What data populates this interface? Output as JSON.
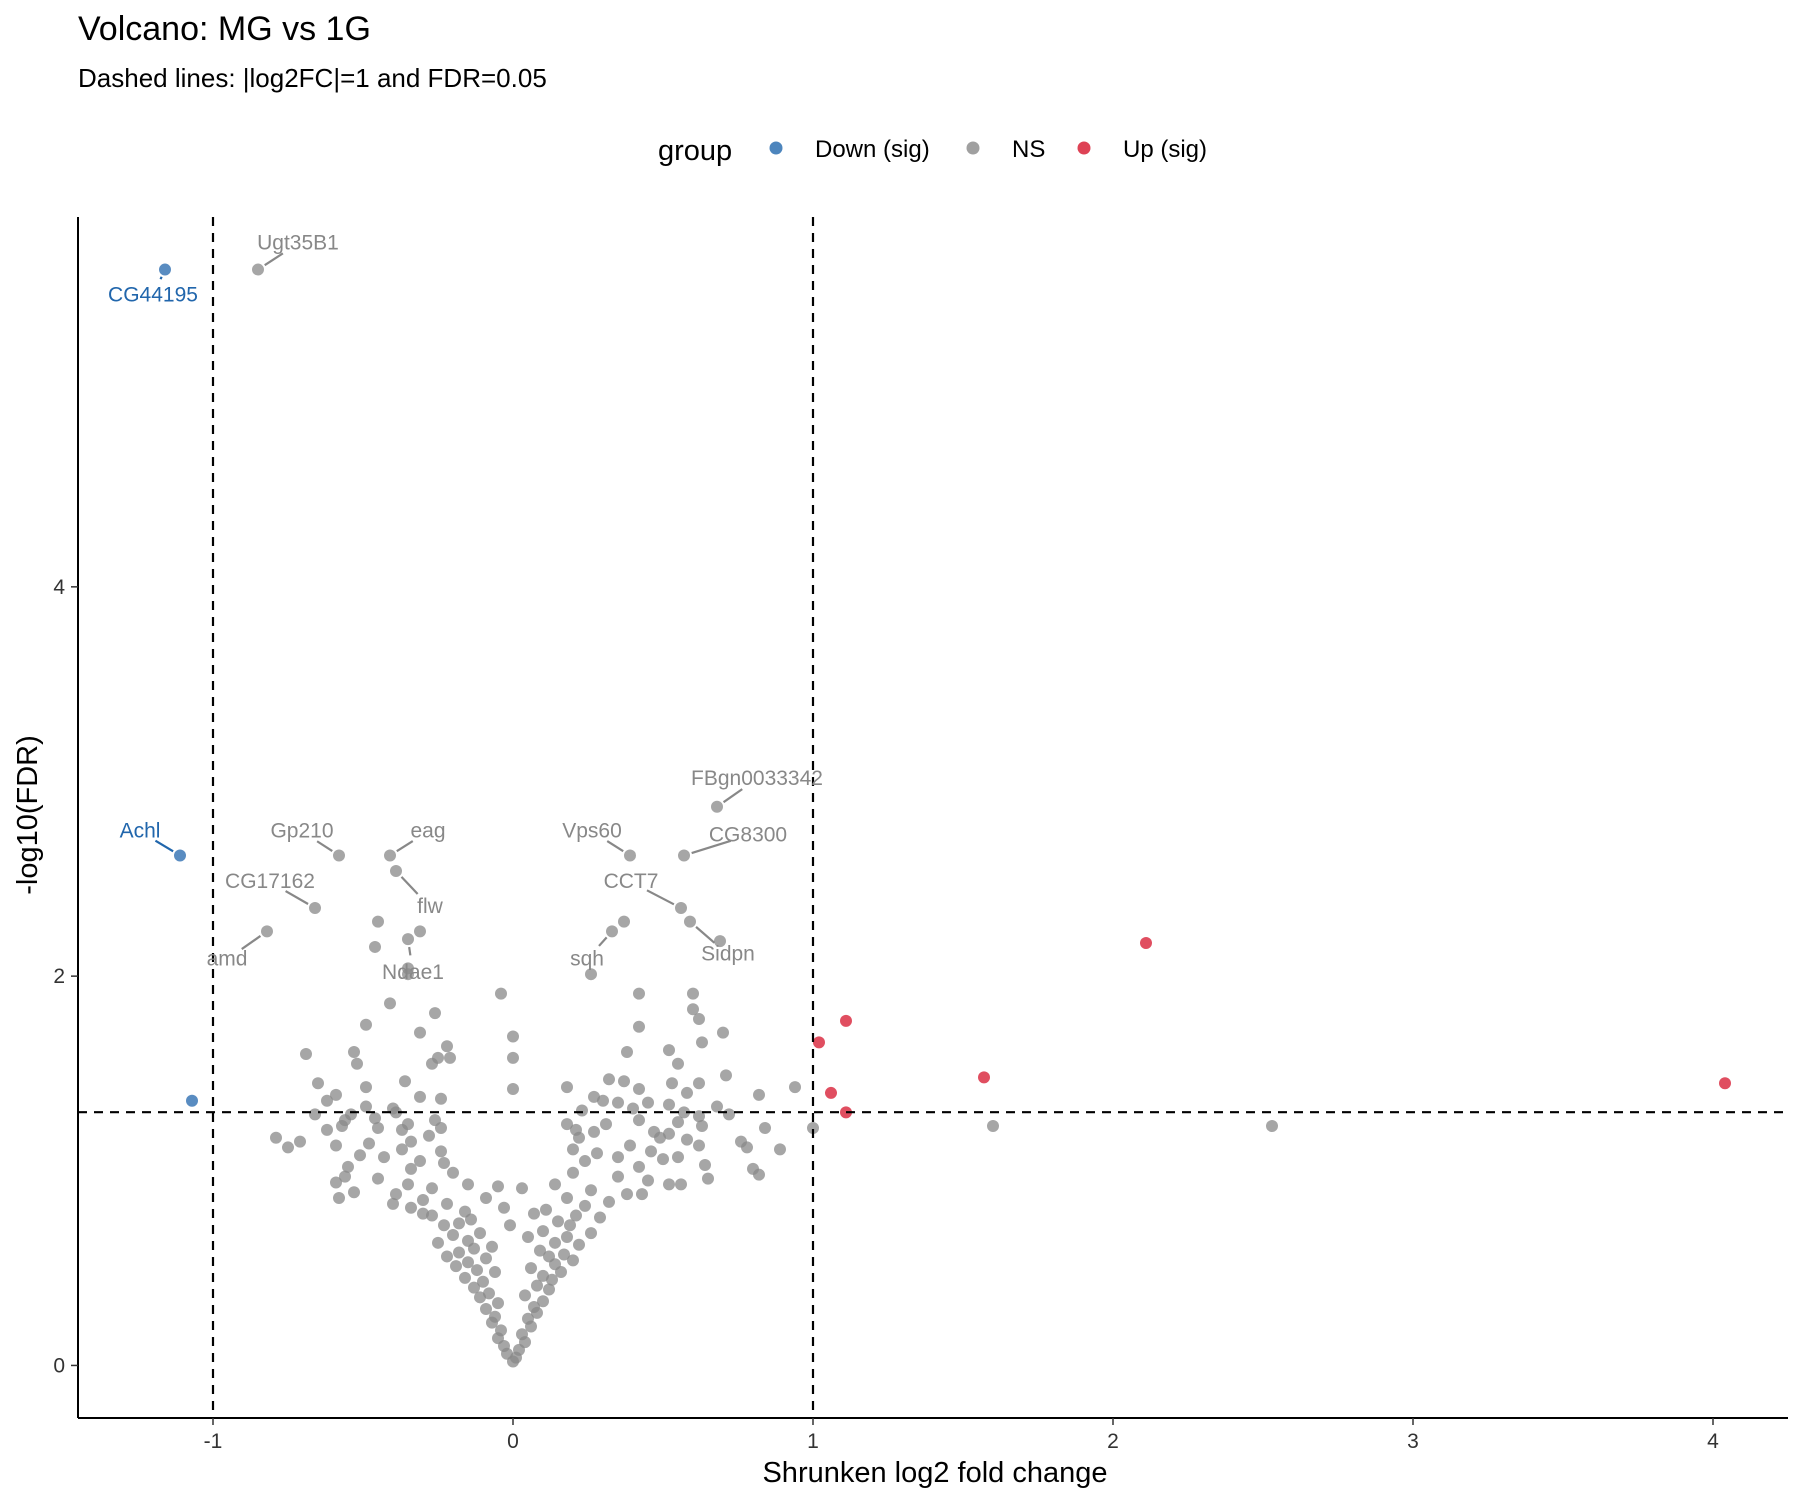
{
  "chart_data": {
    "type": "scatter",
    "title": "Volcano: MG vs 1G",
    "subtitle": "Dashed lines: |log2FC|=1 and FDR=0.05",
    "xlabel": "Shrunken log2 fold change",
    "ylabel": "-log10(FDR)",
    "xlim": [
      -1.45,
      4.25
    ],
    "ylim": [
      -0.27,
      5.9
    ],
    "x_ticks": [
      -1,
      0,
      1,
      2,
      3,
      4
    ],
    "x_tick_labels": [
      "-1",
      "0",
      "1",
      "2",
      "3",
      "4"
    ],
    "y_ticks": [
      0,
      2,
      4
    ],
    "y_tick_labels": [
      "0",
      "2",
      "4"
    ],
    "grid": false,
    "legend": {
      "title": "group",
      "position": "top",
      "entries": [
        {
          "label": "Down (sig)",
          "color": "#2166ac"
        },
        {
          "label": "NS",
          "color": "#888888"
        },
        {
          "label": "Up (sig)",
          "color": "#d6132b"
        }
      ]
    },
    "thresholds": {
      "vertical_x": [
        -1,
        1
      ],
      "horizontal_y": 1.301
    },
    "series": [
      {
        "name": "Down (sig)",
        "color": "#2166ac",
        "points": [
          {
            "x": -1.16,
            "y": 5.63,
            "label": "CG44195"
          },
          {
            "x": -1.11,
            "y": 2.62,
            "label": "Achl"
          },
          {
            "x": -1.07,
            "y": 1.36
          }
        ]
      },
      {
        "name": "Up (sig)",
        "color": "#d6132b",
        "points": [
          {
            "x": 2.11,
            "y": 2.17
          },
          {
            "x": 1.11,
            "y": 1.77
          },
          {
            "x": 1.02,
            "y": 1.66
          },
          {
            "x": 1.57,
            "y": 1.48
          },
          {
            "x": 1.06,
            "y": 1.4
          },
          {
            "x": 4.04,
            "y": 1.45
          },
          {
            "x": 1.11,
            "y": 1.3
          }
        ]
      },
      {
        "name": "NS",
        "color": "#888888",
        "labeled_points": [
          {
            "x": -0.85,
            "y": 5.63,
            "label": "Ugt35B1"
          },
          {
            "x": 0.68,
            "y": 2.87,
            "label": "FBgn0033342"
          },
          {
            "x": -0.58,
            "y": 2.62,
            "label": "Gp210"
          },
          {
            "x": -0.41,
            "y": 2.62,
            "label": "eag"
          },
          {
            "x": 0.39,
            "y": 2.62,
            "label": "Vps60"
          },
          {
            "x": 0.57,
            "y": 2.62,
            "label": "CG8300"
          },
          {
            "x": -0.66,
            "y": 2.35,
            "label": "CG17162"
          },
          {
            "x": -0.39,
            "y": 2.54,
            "label": "flw"
          },
          {
            "x": 0.56,
            "y": 2.35,
            "label": "CCT7"
          },
          {
            "x": -0.82,
            "y": 2.23,
            "label": "amd"
          },
          {
            "x": -0.35,
            "y": 2.19,
            "label": "Ndae1"
          },
          {
            "x": 0.33,
            "y": 2.23,
            "label": "sqh"
          },
          {
            "x": 0.59,
            "y": 2.28,
            "label": "Sidpn"
          }
        ],
        "points": [
          {
            "x": 0.37,
            "y": 2.28
          },
          {
            "x": -0.45,
            "y": 2.28
          },
          {
            "x": -0.31,
            "y": 2.23
          },
          {
            "x": -0.46,
            "y": 2.15
          },
          {
            "x": 0.69,
            "y": 2.18
          },
          {
            "x": -0.35,
            "y": 2.04
          },
          {
            "x": -0.35,
            "y": 2.01
          },
          {
            "x": 0.26,
            "y": 2.01
          },
          {
            "x": -0.04,
            "y": 1.91
          },
          {
            "x": 0.42,
            "y": 1.91
          },
          {
            "x": 0.6,
            "y": 1.91
          },
          {
            "x": -0.41,
            "y": 1.86
          },
          {
            "x": 0.6,
            "y": 1.83
          },
          {
            "x": -0.26,
            "y": 1.81
          },
          {
            "x": 0.62,
            "y": 1.78
          },
          {
            "x": -0.49,
            "y": 1.75
          },
          {
            "x": 0.42,
            "y": 1.74
          },
          {
            "x": -0.31,
            "y": 1.71
          },
          {
            "x": 0.7,
            "y": 1.71
          },
          {
            "x": 0.0,
            "y": 1.69
          },
          {
            "x": 0.63,
            "y": 1.66
          },
          {
            "x": -0.22,
            "y": 1.64
          },
          {
            "x": 0.52,
            "y": 1.62
          },
          {
            "x": -0.69,
            "y": 1.6
          },
          {
            "x": -0.53,
            "y": 1.61
          },
          {
            "x": 0.38,
            "y": 1.61
          },
          {
            "x": -0.25,
            "y": 1.58
          },
          {
            "x": -0.21,
            "y": 1.58
          },
          {
            "x": 0.0,
            "y": 1.58
          },
          {
            "x": -0.52,
            "y": 1.55
          },
          {
            "x": 0.55,
            "y": 1.55
          },
          {
            "x": -0.27,
            "y": 1.55
          },
          {
            "x": 0.71,
            "y": 1.49
          },
          {
            "x": 0.32,
            "y": 1.47
          },
          {
            "x": -0.36,
            "y": 1.46
          },
          {
            "x": 0.37,
            "y": 1.46
          },
          {
            "x": -0.65,
            "y": 1.45
          },
          {
            "x": 0.53,
            "y": 1.45
          },
          {
            "x": 0.62,
            "y": 1.45
          },
          {
            "x": -0.49,
            "y": 1.43
          },
          {
            "x": 0.18,
            "y": 1.43
          },
          {
            "x": 0.42,
            "y": 1.42
          },
          {
            "x": 0.58,
            "y": 1.4
          },
          {
            "x": 0.0,
            "y": 1.42
          },
          {
            "x": 0.94,
            "y": 1.43
          },
          {
            "x": 0.82,
            "y": 1.39
          },
          {
            "x": -0.59,
            "y": 1.39
          },
          {
            "x": -0.31,
            "y": 1.38
          },
          {
            "x": -0.24,
            "y": 1.37
          },
          {
            "x": -0.62,
            "y": 1.36
          },
          {
            "x": 0.27,
            "y": 1.38
          },
          {
            "x": 0.3,
            "y": 1.36
          },
          {
            "x": 0.45,
            "y": 1.35
          },
          {
            "x": 0.35,
            "y": 1.35
          },
          {
            "x": -0.49,
            "y": 1.33
          },
          {
            "x": 0.52,
            "y": 1.34
          },
          {
            "x": 0.68,
            "y": 1.33
          },
          {
            "x": -0.4,
            "y": 1.32
          },
          {
            "x": 0.4,
            "y": 1.32
          },
          {
            "x": 0.23,
            "y": 1.31
          },
          {
            "x": -0.39,
            "y": 1.3
          },
          {
            "x": 0.57,
            "y": 1.3
          },
          {
            "x": -0.66,
            "y": 1.29
          },
          {
            "x": -0.54,
            "y": 1.29
          },
          {
            "x": -0.46,
            "y": 1.27
          },
          {
            "x": 0.62,
            "y": 1.28
          },
          {
            "x": 0.72,
            "y": 1.29
          },
          {
            "x": -0.56,
            "y": 1.26
          },
          {
            "x": -0.26,
            "y": 1.26
          },
          {
            "x": 0.42,
            "y": 1.26
          },
          {
            "x": 0.55,
            "y": 1.25
          },
          {
            "x": -0.35,
            "y": 1.24
          },
          {
            "x": 0.31,
            "y": 1.24
          },
          {
            "x": 0.18,
            "y": 1.24
          },
          {
            "x": 0.63,
            "y": 1.23
          },
          {
            "x": 1.6,
            "y": 1.23
          },
          {
            "x": 2.53,
            "y": 1.23
          },
          {
            "x": -0.57,
            "y": 1.23
          },
          {
            "x": -0.45,
            "y": 1.22
          },
          {
            "x": -0.24,
            "y": 1.22
          },
          {
            "x": -0.37,
            "y": 1.21
          },
          {
            "x": 0.21,
            "y": 1.21
          },
          {
            "x": 0.47,
            "y": 1.2
          },
          {
            "x": 1.0,
            "y": 1.22
          },
          {
            "x": 0.84,
            "y": 1.22
          },
          {
            "x": -0.62,
            "y": 1.21
          },
          {
            "x": 0.27,
            "y": 1.2
          },
          {
            "x": 0.52,
            "y": 1.19
          },
          {
            "x": -0.28,
            "y": 1.18
          },
          {
            "x": 0.22,
            "y": 1.17
          },
          {
            "x": 0.49,
            "y": 1.17
          },
          {
            "x": -0.79,
            "y": 1.17
          },
          {
            "x": -0.71,
            "y": 1.15
          },
          {
            "x": -0.34,
            "y": 1.15
          },
          {
            "x": 0.58,
            "y": 1.16
          },
          {
            "x": 0.76,
            "y": 1.15
          },
          {
            "x": -0.48,
            "y": 1.14
          },
          {
            "x": 0.39,
            "y": 1.13
          },
          {
            "x": 0.62,
            "y": 1.13
          },
          {
            "x": -0.59,
            "y": 1.13
          },
          {
            "x": -0.75,
            "y": 1.12
          },
          {
            "x": -0.37,
            "y": 1.11
          },
          {
            "x": 0.2,
            "y": 1.11
          },
          {
            "x": 0.46,
            "y": 1.1
          },
          {
            "x": 0.78,
            "y": 1.12
          },
          {
            "x": 0.89,
            "y": 1.11
          },
          {
            "x": -0.24,
            "y": 1.1
          },
          {
            "x": 0.28,
            "y": 1.09
          },
          {
            "x": -0.51,
            "y": 1.08
          },
          {
            "x": -0.43,
            "y": 1.07
          },
          {
            "x": 0.35,
            "y": 1.07
          },
          {
            "x": 0.55,
            "y": 1.07
          },
          {
            "x": 0.5,
            "y": 1.06
          },
          {
            "x": -0.31,
            "y": 1.05
          },
          {
            "x": 0.24,
            "y": 1.05
          },
          {
            "x": -0.23,
            "y": 1.04
          },
          {
            "x": 0.64,
            "y": 1.03
          },
          {
            "x": -0.55,
            "y": 1.02
          },
          {
            "x": 0.42,
            "y": 1.02
          },
          {
            "x": -0.34,
            "y": 1.01
          },
          {
            "x": 0.8,
            "y": 1.01
          },
          {
            "x": -0.2,
            "y": 0.99
          },
          {
            "x": 0.2,
            "y": 0.99
          },
          {
            "x": 0.82,
            "y": 0.98
          },
          {
            "x": -0.56,
            "y": 0.97
          },
          {
            "x": 0.35,
            "y": 0.97
          },
          {
            "x": 0.65,
            "y": 0.96
          },
          {
            "x": -0.45,
            "y": 0.96
          },
          {
            "x": 0.45,
            "y": 0.95
          },
          {
            "x": -0.59,
            "y": 0.94
          },
          {
            "x": -0.35,
            "y": 0.93
          },
          {
            "x": 0.52,
            "y": 0.93
          },
          {
            "x": 0.56,
            "y": 0.93
          },
          {
            "x": -0.15,
            "y": 0.93
          },
          {
            "x": 0.14,
            "y": 0.93
          },
          {
            "x": -0.05,
            "y": 0.92
          },
          {
            "x": 0.03,
            "y": 0.91
          },
          {
            "x": -0.27,
            "y": 0.91
          },
          {
            "x": 0.26,
            "y": 0.9
          },
          {
            "x": -0.53,
            "y": 0.89
          },
          {
            "x": -0.39,
            "y": 0.88
          },
          {
            "x": 0.38,
            "y": 0.88
          },
          {
            "x": 0.43,
            "y": 0.88
          },
          {
            "x": -0.09,
            "y": 0.86
          },
          {
            "x": 0.18,
            "y": 0.86
          },
          {
            "x": -0.58,
            "y": 0.86
          },
          {
            "x": -0.3,
            "y": 0.85
          },
          {
            "x": 0.32,
            "y": 0.84
          },
          {
            "x": -0.4,
            "y": 0.83
          },
          {
            "x": -0.22,
            "y": 0.83
          },
          {
            "x": 0.24,
            "y": 0.82
          },
          {
            "x": -0.34,
            "y": 0.81
          },
          {
            "x": -0.03,
            "y": 0.81
          },
          {
            "x": 0.11,
            "y": 0.8
          },
          {
            "x": -0.16,
            "y": 0.79
          },
          {
            "x": 0.07,
            "y": 0.78
          },
          {
            "x": -0.3,
            "y": 0.78
          },
          {
            "x": 0.21,
            "y": 0.77
          },
          {
            "x": -0.27,
            "y": 0.77
          },
          {
            "x": 0.29,
            "y": 0.76
          },
          {
            "x": -0.14,
            "y": 0.75
          },
          {
            "x": 0.15,
            "y": 0.74
          },
          {
            "x": -0.18,
            "y": 0.73
          },
          {
            "x": -0.23,
            "y": 0.72
          },
          {
            "x": 0.19,
            "y": 0.72
          },
          {
            "x": -0.01,
            "y": 0.72
          },
          {
            "x": 0.1,
            "y": 0.69
          },
          {
            "x": -0.11,
            "y": 0.68
          },
          {
            "x": 0.26,
            "y": 0.68
          },
          {
            "x": -0.2,
            "y": 0.67
          },
          {
            "x": 0.18,
            "y": 0.66
          },
          {
            "x": 0.05,
            "y": 0.66
          },
          {
            "x": -0.15,
            "y": 0.64
          },
          {
            "x": 0.14,
            "y": 0.63
          },
          {
            "x": -0.25,
            "y": 0.63
          },
          {
            "x": 0.22,
            "y": 0.62
          },
          {
            "x": -0.07,
            "y": 0.61
          },
          {
            "x": -0.13,
            "y": 0.6
          },
          {
            "x": 0.09,
            "y": 0.59
          },
          {
            "x": -0.18,
            "y": 0.58
          },
          {
            "x": 0.17,
            "y": 0.57
          },
          {
            "x": 0.12,
            "y": 0.56
          },
          {
            "x": -0.22,
            "y": 0.56
          },
          {
            "x": -0.09,
            "y": 0.55
          },
          {
            "x": 0.2,
            "y": 0.54
          },
          {
            "x": -0.15,
            "y": 0.53
          },
          {
            "x": 0.14,
            "y": 0.52
          },
          {
            "x": -0.19,
            "y": 0.51
          },
          {
            "x": 0.06,
            "y": 0.5
          },
          {
            "x": -0.12,
            "y": 0.49
          },
          {
            "x": 0.16,
            "y": 0.48
          },
          {
            "x": -0.06,
            "y": 0.48
          },
          {
            "x": 0.1,
            "y": 0.46
          },
          {
            "x": -0.16,
            "y": 0.45
          },
          {
            "x": 0.13,
            "y": 0.44
          },
          {
            "x": -0.1,
            "y": 0.43
          },
          {
            "x": 0.08,
            "y": 0.41
          },
          {
            "x": -0.13,
            "y": 0.4
          },
          {
            "x": 0.12,
            "y": 0.39
          },
          {
            "x": -0.08,
            "y": 0.37
          },
          {
            "x": 0.04,
            "y": 0.36
          },
          {
            "x": -0.11,
            "y": 0.35
          },
          {
            "x": 0.1,
            "y": 0.33
          },
          {
            "x": -0.05,
            "y": 0.32
          },
          {
            "x": 0.07,
            "y": 0.3
          },
          {
            "x": -0.09,
            "y": 0.29
          },
          {
            "x": 0.08,
            "y": 0.27
          },
          {
            "x": -0.06,
            "y": 0.25
          },
          {
            "x": 0.05,
            "y": 0.24
          },
          {
            "x": -0.07,
            "y": 0.22
          },
          {
            "x": 0.06,
            "y": 0.2
          },
          {
            "x": -0.04,
            "y": 0.18
          },
          {
            "x": 0.03,
            "y": 0.16
          },
          {
            "x": -0.05,
            "y": 0.14
          },
          {
            "x": 0.04,
            "y": 0.12
          },
          {
            "x": -0.03,
            "y": 0.1
          },
          {
            "x": 0.02,
            "y": 0.08
          },
          {
            "x": -0.02,
            "y": 0.06
          },
          {
            "x": 0.01,
            "y": 0.04
          },
          {
            "x": 0.0,
            "y": 0.02
          }
        ]
      }
    ]
  }
}
